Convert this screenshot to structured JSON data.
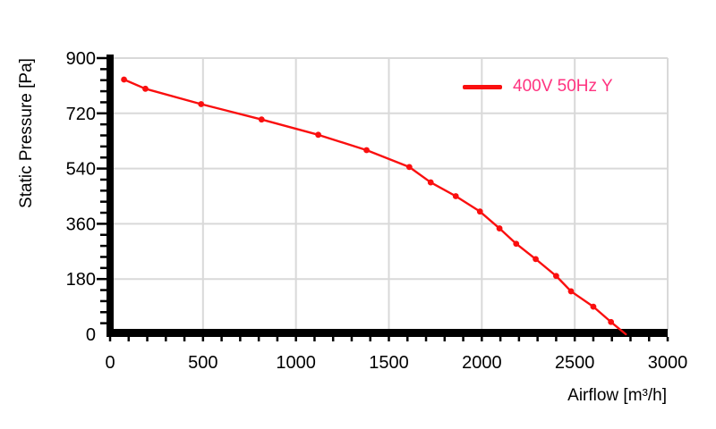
{
  "page": {
    "background": "#ffffff"
  },
  "chart_data": {
    "type": "line",
    "title": "",
    "xlabel": "Airflow [m³/h]",
    "ylabel": "Static Pressure [Pa]",
    "xlim": [
      0,
      3000
    ],
    "ylim": [
      0,
      900
    ],
    "x_ticks": [
      0,
      500,
      1000,
      1500,
      2000,
      2500,
      3000
    ],
    "y_ticks": [
      0,
      180,
      360,
      540,
      720,
      900
    ],
    "x_minor_step": 100,
    "y_minor_step": 36,
    "grid": true,
    "legend_position": "top-right-inside",
    "colors": {
      "grid": "#d9d9d9",
      "axis": "#000000",
      "tick_label": "#000000",
      "legend_text": "#ff3380"
    },
    "series": [
      {
        "name": "400V 50Hz Y",
        "color": "#fa0f0f",
        "marker": "circle",
        "last_point_marker": false,
        "points": [
          [
            75,
            830
          ],
          [
            190,
            800
          ],
          [
            490,
            750
          ],
          [
            815,
            700
          ],
          [
            1120,
            650
          ],
          [
            1380,
            600
          ],
          [
            1610,
            545
          ],
          [
            1725,
            495
          ],
          [
            1860,
            450
          ],
          [
            1990,
            400
          ],
          [
            2095,
            345
          ],
          [
            2185,
            295
          ],
          [
            2290,
            245
          ],
          [
            2400,
            190
          ],
          [
            2480,
            140
          ],
          [
            2600,
            90
          ],
          [
            2695,
            40
          ],
          [
            2775,
            0
          ]
        ]
      }
    ]
  }
}
